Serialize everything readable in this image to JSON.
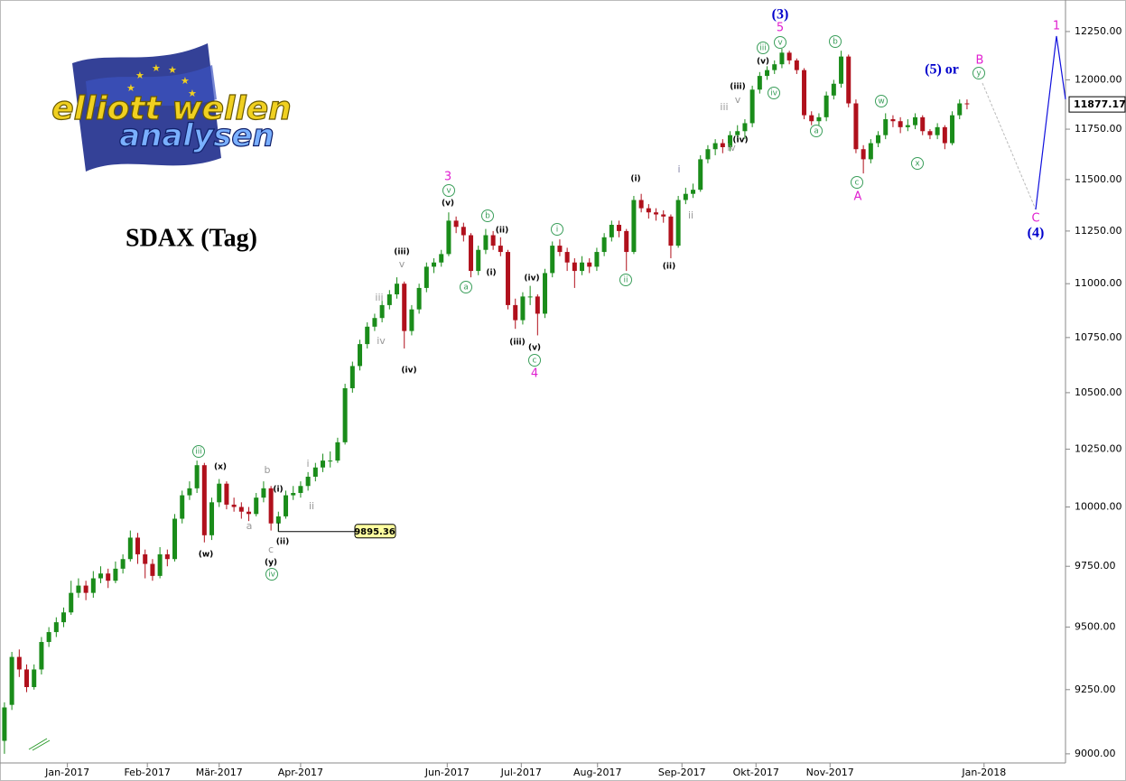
{
  "chart_data": {
    "type": "candlestick",
    "title": "SDAX (Tag)",
    "logo": {
      "line1": "elliott wellen",
      "line2": "analysen"
    },
    "log_scale": true,
    "up_color": "#1a8c1a",
    "down_color": "#b0101c",
    "xlim": [
      -0.6,
      143.3
    ],
    "xticks": [
      {
        "value": 8.5,
        "label": "Jan-2017"
      },
      {
        "value": 19.3,
        "label": "Feb-2017"
      },
      {
        "value": 29,
        "label": "Mär-2017"
      },
      {
        "value": 40,
        "label": "Apr-2017"
      },
      {
        "value": 59.8,
        "label": "Jun-2017"
      },
      {
        "value": 69.8,
        "label": "Jul-2017"
      },
      {
        "value": 80.1,
        "label": "Aug-2017"
      },
      {
        "value": 91.5,
        "label": "Sep-2017"
      },
      {
        "value": 101.5,
        "label": "Okt-2017"
      },
      {
        "value": 111.5,
        "label": "Nov-2017"
      },
      {
        "value": 132.3,
        "label": "Jan-2018"
      }
    ],
    "ylim": [
      8965,
      12416
    ],
    "yticks": [
      {
        "value": 9000,
        "label": "9000.00"
      },
      {
        "value": 9250,
        "label": "9250.00"
      },
      {
        "value": 9500,
        "label": "9500.00"
      },
      {
        "value": 9750,
        "label": "9750.00"
      },
      {
        "value": 10000,
        "label": "10000.00"
      },
      {
        "value": 10250,
        "label": "10250.00"
      },
      {
        "value": 10500,
        "label": "10500.00"
      },
      {
        "value": 10750,
        "label": "10750.00"
      },
      {
        "value": 11000,
        "label": "11000.00"
      },
      {
        "value": 11250,
        "label": "11250.00"
      },
      {
        "value": 11500,
        "label": "11500.00"
      },
      {
        "value": 11750,
        "label": "11750.00"
      },
      {
        "value": 12000,
        "label": "12000.00"
      },
      {
        "value": 12250,
        "label": "12250.00"
      }
    ],
    "ohlc": [
      [
        9050,
        9200,
        9000,
        9180
      ],
      [
        9190,
        9400,
        9170,
        9380
      ],
      [
        9380,
        9410,
        9300,
        9330
      ],
      [
        9330,
        9350,
        9240,
        9260
      ],
      [
        9260,
        9350,
        9250,
        9330
      ],
      [
        9330,
        9460,
        9310,
        9440
      ],
      [
        9440,
        9500,
        9420,
        9480
      ],
      [
        9480,
        9540,
        9460,
        9520
      ],
      [
        9520,
        9580,
        9500,
        9560
      ],
      [
        9560,
        9690,
        9550,
        9640
      ],
      [
        9640,
        9700,
        9620,
        9670
      ],
      [
        9670,
        9690,
        9610,
        9640
      ],
      [
        9640,
        9730,
        9620,
        9700
      ],
      [
        9700,
        9750,
        9680,
        9720
      ],
      [
        9720,
        9740,
        9660,
        9690
      ],
      [
        9690,
        9770,
        9680,
        9740
      ],
      [
        9740,
        9800,
        9720,
        9780
      ],
      [
        9780,
        9900,
        9770,
        9870
      ],
      [
        9870,
        9890,
        9760,
        9800
      ],
      [
        9800,
        9820,
        9700,
        9760
      ],
      [
        9760,
        9780,
        9690,
        9710
      ],
      [
        9710,
        9830,
        9700,
        9800
      ],
      [
        9800,
        9820,
        9750,
        9780
      ],
      [
        9780,
        9970,
        9770,
        9950
      ],
      [
        9950,
        10070,
        9930,
        10050
      ],
      [
        10050,
        10110,
        10030,
        10080
      ],
      [
        10080,
        10200,
        10060,
        10180
      ],
      [
        10180,
        10190,
        9850,
        9880
      ],
      [
        9880,
        10040,
        9860,
        10020
      ],
      [
        10020,
        10120,
        10000,
        10100
      ],
      [
        10100,
        10110,
        9990,
        10010
      ],
      [
        10010,
        10040,
        9980,
        10000
      ],
      [
        10000,
        10020,
        9950,
        9980
      ],
      [
        9980,
        10000,
        9940,
        9970
      ],
      [
        9970,
        10060,
        9960,
        10040
      ],
      [
        10040,
        10110,
        10020,
        10080
      ],
      [
        10080,
        10090,
        9900,
        9930
      ],
      [
        9930,
        9980,
        9895.36,
        9960
      ],
      [
        9960,
        10070,
        9950,
        10050
      ],
      [
        10050,
        10090,
        10030,
        10060
      ],
      [
        10060,
        10110,
        10040,
        10090
      ],
      [
        10090,
        10150,
        10070,
        10130
      ],
      [
        10130,
        10190,
        10110,
        10170
      ],
      [
        10170,
        10230,
        10150,
        10200
      ],
      [
        10200,
        10240,
        10170,
        10200
      ],
      [
        10200,
        10300,
        10190,
        10280
      ],
      [
        10280,
        10540,
        10270,
        10520
      ],
      [
        10520,
        10640,
        10500,
        10620
      ],
      [
        10620,
        10740,
        10600,
        10720
      ],
      [
        10720,
        10820,
        10700,
        10800
      ],
      [
        10800,
        10860,
        10780,
        10840
      ],
      [
        10840,
        10920,
        10820,
        10900
      ],
      [
        10900,
        10970,
        10880,
        10950
      ],
      [
        10950,
        11030,
        10930,
        11000
      ],
      [
        11000,
        11010,
        10700,
        10780
      ],
      [
        10780,
        10900,
        10760,
        10880
      ],
      [
        10880,
        11000,
        10860,
        10980
      ],
      [
        10980,
        11100,
        10960,
        11080
      ],
      [
        11080,
        11120,
        11050,
        11100
      ],
      [
        11100,
        11160,
        11080,
        11140
      ],
      [
        11140,
        11340,
        11130,
        11300
      ],
      [
        11300,
        11320,
        11240,
        11270
      ],
      [
        11270,
        11290,
        11200,
        11230
      ],
      [
        11230,
        11240,
        11030,
        11060
      ],
      [
        11060,
        11180,
        11040,
        11160
      ],
      [
        11160,
        11260,
        11140,
        11230
      ],
      [
        11230,
        11250,
        11160,
        11180
      ],
      [
        11180,
        11220,
        11130,
        11150
      ],
      [
        11150,
        11160,
        10880,
        10900
      ],
      [
        10900,
        10930,
        10790,
        10830
      ],
      [
        10830,
        10960,
        10810,
        10940
      ],
      [
        10940,
        10990,
        10900,
        10940
      ],
      [
        10940,
        10950,
        10760,
        10860
      ],
      [
        10860,
        11070,
        10840,
        11050
      ],
      [
        11050,
        11200,
        11030,
        11180
      ],
      [
        11180,
        11210,
        11130,
        11150
      ],
      [
        11150,
        11170,
        11060,
        11100
      ],
      [
        11100,
        11120,
        10980,
        11060
      ],
      [
        11060,
        11130,
        11040,
        11100
      ],
      [
        11100,
        11120,
        11050,
        11080
      ],
      [
        11080,
        11170,
        11060,
        11150
      ],
      [
        11150,
        11240,
        11130,
        11220
      ],
      [
        11220,
        11300,
        11200,
        11280
      ],
      [
        11280,
        11300,
        11220,
        11250
      ],
      [
        11250,
        11260,
        11060,
        11150
      ],
      [
        11150,
        11420,
        11140,
        11400
      ],
      [
        11400,
        11430,
        11340,
        11360
      ],
      [
        11360,
        11380,
        11310,
        11340
      ],
      [
        11340,
        11360,
        11300,
        11330
      ],
      [
        11330,
        11350,
        11290,
        11320
      ],
      [
        11320,
        11330,
        11120,
        11180
      ],
      [
        11180,
        11420,
        11170,
        11400
      ],
      [
        11400,
        11460,
        11380,
        11430
      ],
      [
        11430,
        11480,
        11410,
        11450
      ],
      [
        11450,
        11620,
        11440,
        11600
      ],
      [
        11600,
        11670,
        11580,
        11650
      ],
      [
        11650,
        11700,
        11620,
        11680
      ],
      [
        11680,
        11700,
        11630,
        11660
      ],
      [
        11660,
        11740,
        11640,
        11720
      ],
      [
        11720,
        11770,
        11700,
        11740
      ],
      [
        11740,
        11800,
        11700,
        11780
      ],
      [
        11780,
        11970,
        11760,
        11950
      ],
      [
        11950,
        12040,
        11930,
        12020
      ],
      [
        12020,
        12070,
        12000,
        12050
      ],
      [
        12050,
        12100,
        12030,
        12080
      ],
      [
        12080,
        12160,
        12060,
        12140
      ],
      [
        12140,
        12150,
        12080,
        12100
      ],
      [
        12100,
        12110,
        12030,
        12050
      ],
      [
        12050,
        12060,
        11800,
        11820
      ],
      [
        11820,
        11840,
        11770,
        11790
      ],
      [
        11790,
        11830,
        11770,
        11810
      ],
      [
        11810,
        11940,
        11790,
        11920
      ],
      [
        11920,
        12000,
        11900,
        11980
      ],
      [
        11980,
        12150,
        11960,
        12120
      ],
      [
        12120,
        12130,
        11860,
        11880
      ],
      [
        11880,
        11900,
        11630,
        11650
      ],
      [
        11650,
        11670,
        11530,
        11600
      ],
      [
        11600,
        11700,
        11580,
        11680
      ],
      [
        11680,
        11740,
        11660,
        11720
      ],
      [
        11720,
        11830,
        11700,
        11800
      ],
      [
        11800,
        11820,
        11760,
        11790
      ],
      [
        11790,
        11810,
        11730,
        11760
      ],
      [
        11760,
        11800,
        11740,
        11770
      ],
      [
        11770,
        11830,
        11750,
        11810
      ],
      [
        11810,
        11820,
        11720,
        11740
      ],
      [
        11740,
        11750,
        11700,
        11720
      ],
      [
        11720,
        11780,
        11700,
        11760
      ],
      [
        11760,
        11770,
        11650,
        11680
      ],
      [
        11680,
        11840,
        11670,
        11820
      ],
      [
        11820,
        11900,
        11800,
        11880
      ],
      [
        11880,
        11900,
        11850,
        11877.17
      ]
    ],
    "marked_low": 9895.36,
    "annotations": [
      {
        "text": "iii",
        "color": "#3a9e5a",
        "circled": true
      },
      {
        "text": "iv",
        "color": "#3a9e5a",
        "circled": true
      },
      {
        "text": "v",
        "color": "#3a9e5a",
        "circled": true
      },
      {
        "text": "a",
        "color": "#3a9e5a",
        "circled": true
      },
      {
        "text": "b",
        "color": "#3a9e5a",
        "circled": true
      },
      {
        "text": "c",
        "color": "#3a9e5a",
        "circled": true
      },
      {
        "text": "i",
        "color": "#3a9e5a",
        "circled": true
      },
      {
        "text": "ii",
        "color": "#3a9e5a",
        "circled": true
      },
      {
        "text": "iii",
        "color": "#3a9e5a",
        "circled": true
      },
      {
        "text": "v",
        "color": "#3a9e5a",
        "circled": true
      },
      {
        "text": "iv",
        "color": "#3a9e5a",
        "circled": true
      },
      {
        "text": "a",
        "color": "#3a9e5a",
        "circled": true
      },
      {
        "text": "b",
        "color": "#3a9e5a",
        "circled": true
      },
      {
        "text": "c",
        "color": "#3a9e5a",
        "circled": true
      },
      {
        "text": "w",
        "color": "#3a9e5a",
        "circled": true
      },
      {
        "text": "x",
        "color": "#3a9e5a",
        "circled": true
      },
      {
        "text": "y",
        "color": "#3a9e5a",
        "circled": true
      },
      {
        "text": "(x)",
        "color": "#000000"
      },
      {
        "text": "(w)",
        "color": "#000000"
      },
      {
        "text": "(i)",
        "color": "#000000"
      },
      {
        "text": "(ii)",
        "color": "#000000"
      },
      {
        "text": "(y)",
        "color": "#000000"
      },
      {
        "text": "(iii)",
        "color": "#000000"
      },
      {
        "text": "(iv)",
        "color": "#000000"
      },
      {
        "text": "(v)",
        "color": "#000000"
      },
      {
        "text": "(i)",
        "color": "#000000"
      },
      {
        "text": "(ii)",
        "color": "#000000"
      },
      {
        "text": "(iii)",
        "color": "#000000"
      },
      {
        "text": "(iv)",
        "color": "#000000"
      },
      {
        "text": "(v)",
        "color": "#000000"
      },
      {
        "text": "(i)",
        "color": "#000000"
      },
      {
        "text": "(ii)",
        "color": "#000000"
      },
      {
        "text": "(iii)",
        "color": "#000000"
      },
      {
        "text": "(iv)",
        "color": "#000000"
      },
      {
        "text": "(v)",
        "color": "#000000"
      },
      {
        "text": "a",
        "color": "#999999"
      },
      {
        "text": "b",
        "color": "#999999"
      },
      {
        "text": "c",
        "color": "#999999"
      },
      {
        "text": "i",
        "color": "#999999"
      },
      {
        "text": "ii",
        "color": "#999999"
      },
      {
        "text": "iii",
        "color": "#999999"
      },
      {
        "text": "iv",
        "color": "#999999"
      },
      {
        "text": "v",
        "color": "#999999"
      },
      {
        "text": "i",
        "color": "#8888aa"
      },
      {
        "text": "ii",
        "color": "#999999"
      },
      {
        "text": "iii",
        "color": "#999999"
      },
      {
        "text": "iv",
        "color": "#999999"
      },
      {
        "text": "v",
        "color": "#999999"
      },
      {
        "text": "3",
        "color": "#e020d0"
      },
      {
        "text": "4",
        "color": "#e020d0"
      },
      {
        "text": "5",
        "color": "#e020d0"
      },
      {
        "text": "A",
        "color": "#e020d0"
      },
      {
        "text": "B",
        "color": "#e020d0"
      },
      {
        "text": "C",
        "color": "#e020d0"
      },
      {
        "text": "1",
        "color": "#e020d0"
      },
      {
        "text": "(3)",
        "color": "#0000cc"
      },
      {
        "text": "(5) or",
        "color": "#0000cc"
      },
      {
        "text": "(4)",
        "color": "#0000cc"
      }
    ]
  }
}
